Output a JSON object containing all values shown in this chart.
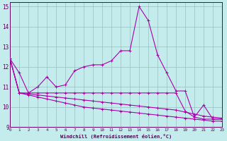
{
  "xlabel": "Windchill (Refroidissement éolien,°C)",
  "x_ticks": [
    0,
    1,
    2,
    3,
    4,
    5,
    6,
    7,
    8,
    9,
    10,
    11,
    12,
    13,
    14,
    15,
    16,
    17,
    18,
    19,
    20,
    21,
    22,
    23
  ],
  "ylim": [
    9,
    15.2
  ],
  "yticks": [
    9,
    10,
    11,
    12,
    13,
    14,
    15
  ],
  "background_color": "#c5eced",
  "line_color": "#aa00aa",
  "grid_color": "#9bbfc0",
  "series": [
    [
      12.4,
      11.7,
      10.7,
      11.0,
      11.5,
      11.0,
      11.1,
      11.8,
      12.0,
      12.1,
      12.1,
      12.3,
      12.8,
      12.8,
      15.0,
      14.3,
      12.6,
      11.7,
      10.8,
      10.8,
      9.5,
      10.1,
      9.4,
      9.4
    ],
    [
      12.4,
      10.7,
      10.7,
      10.7,
      10.7,
      10.7,
      10.7,
      10.7,
      10.7,
      10.7,
      10.7,
      10.7,
      10.7,
      10.7,
      10.7,
      10.7,
      10.7,
      10.7,
      10.7,
      9.8,
      9.5,
      9.4,
      9.4,
      9.4
    ],
    [
      12.4,
      10.7,
      10.65,
      10.6,
      10.55,
      10.5,
      10.45,
      10.4,
      10.35,
      10.3,
      10.25,
      10.2,
      10.15,
      10.1,
      10.05,
      10.0,
      9.95,
      9.9,
      9.85,
      9.75,
      9.65,
      9.55,
      9.5,
      9.45
    ],
    [
      12.4,
      10.7,
      10.6,
      10.5,
      10.4,
      10.3,
      10.2,
      10.1,
      10.0,
      9.95,
      9.9,
      9.85,
      9.8,
      9.75,
      9.7,
      9.65,
      9.6,
      9.55,
      9.5,
      9.45,
      9.4,
      9.35,
      9.3,
      9.3
    ]
  ]
}
